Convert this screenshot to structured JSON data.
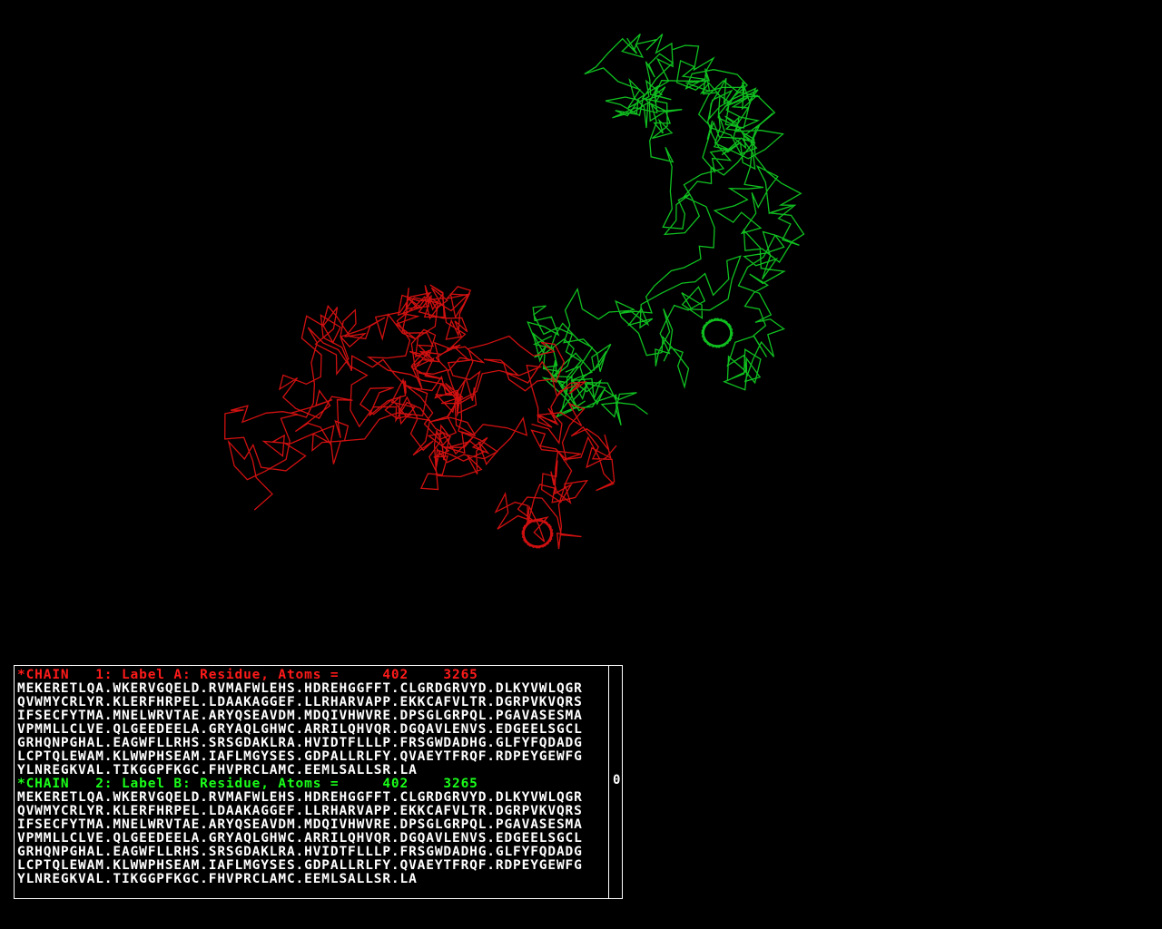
{
  "viewer": {
    "background": "#000000",
    "chains": [
      {
        "id": "A",
        "color": "#d01010"
      },
      {
        "id": "B",
        "color": "#10c020"
      }
    ]
  },
  "sequence_panel": {
    "chains": [
      {
        "header": "*CHAIN   1: Label A: Residue, Atoms =     402    3265",
        "color": "#ff1a1a",
        "lines": [
          "MEKERETLQA.WKERVGQELD.RVMAFWLEHS.HDREHGGFFT.CLGRDGRVYD.DLKYVWLQGR",
          "QVWMYCRLYR.KLERFHRPEL.LDAAKAGGEF.LLRHARVAPP.EKKCAFVLTR.DGRPVKVQRS",
          "IFSECFYTMA.MNELWRVTAE.ARYQSEAVDM.MDQIVHWVRE.DPSGLGRPQL.PGAVASESMA",
          "VPMMLLCLVE.QLGEEDEELA.GRYAQLGHWC.ARRILQHVQR.DGQAVLENVS.EDGEELSGCL",
          "GRHQNPGHAL.EAGWFLLRHS.SRSGDAKLRA.HVIDTFLLLP.FRSGWDADHG.GLFYFQDADG",
          "LCPTQLEWAM.KLWWPHSEAM.IAFLMGYSES.GDPALLRLFY.QVAEYTFRQF.RDPEYGEWFG",
          "YLNREGKVAL.TIKGGPFKGC.FHVPRCLAMC.EEMLSALLSR.LA"
        ]
      },
      {
        "header": "*CHAIN   2: Label B: Residue, Atoms =     402    3265",
        "color": "#1aff1a",
        "lines": [
          "MEKERETLQA.WKERVGQELD.RVMAFWLEHS.HDREHGGFFT.CLGRDGRVYD.DLKYVWLQGR",
          "QVWMYCRLYR.KLERFHRPEL.LDAAKAGGEF.LLRHARVAPP.EKKCAFVLTR.DGRPVKVQRS",
          "IFSECFYTMA.MNELWRVTAE.ARYQSEAVDM.MDQIVHWVRE.DPSGLGRPQL.PGAVASESMA",
          "VPMMLLCLVE.QLGEEDEELA.GRYAQLGHWC.ARRILQHVQR.DGQAVLENVS.EDGEELSGCL",
          "GRHQNPGHAL.EAGWFLLRHS.SRSGDAKLRA.HVIDTFLLLP.FRSGWDADHG.GLFYFQDADG",
          "LCPTQLEWAM.KLWWPHSEAM.IAFLMGYSES.GDPALLRLFY.QVAEYTFRQF.RDPEYGEWFG",
          "YLNREGKVAL.TIKGGPFKGC.FHVPRCLAMC.EEMLSALLSR.LA"
        ]
      }
    ],
    "scroll_value": "0"
  }
}
